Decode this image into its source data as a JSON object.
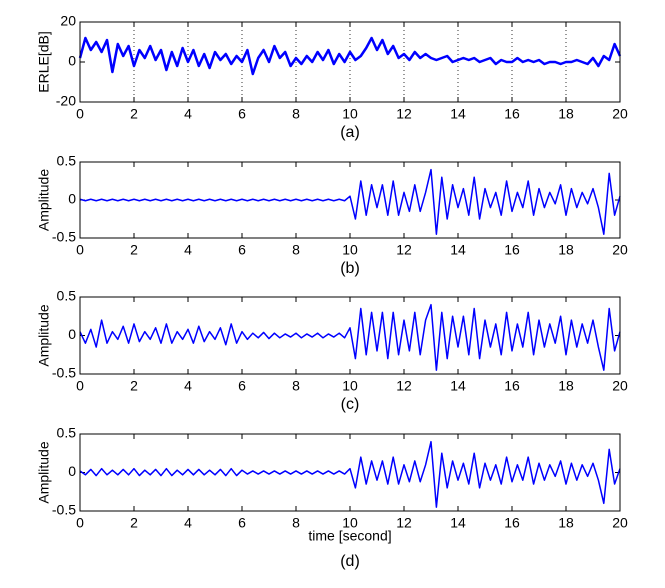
{
  "chart_data": [
    {
      "type": "line",
      "caption": "(a)",
      "ylabel": "ERLE[dB]",
      "color": "#0000ff",
      "grid": true,
      "xlim": [
        0,
        20
      ],
      "xticks": [
        0,
        2,
        4,
        6,
        8,
        10,
        12,
        14,
        16,
        18,
        20
      ],
      "ylim": [
        -20,
        20
      ],
      "yticks": [
        -20,
        0,
        20
      ],
      "x": [
        0,
        0.2,
        0.4,
        0.6,
        0.8,
        1,
        1.2,
        1.4,
        1.6,
        1.8,
        2,
        2.2,
        2.4,
        2.6,
        2.8,
        3,
        3.2,
        3.4,
        3.6,
        3.8,
        4,
        4.2,
        4.4,
        4.6,
        4.8,
        5,
        5.2,
        5.4,
        5.6,
        5.8,
        6,
        6.2,
        6.4,
        6.6,
        6.8,
        7,
        7.2,
        7.4,
        7.6,
        7.8,
        8,
        8.2,
        8.4,
        8.6,
        8.8,
        9,
        9.2,
        9.4,
        9.6,
        9.8,
        10,
        10.2,
        10.4,
        10.6,
        10.8,
        11,
        11.2,
        11.4,
        11.6,
        11.8,
        12,
        12.2,
        12.4,
        12.6,
        12.8,
        13,
        13.2,
        13.4,
        13.6,
        13.8,
        14,
        14.2,
        14.4,
        14.6,
        14.8,
        15,
        15.2,
        15.4,
        15.6,
        15.8,
        16,
        16.2,
        16.4,
        16.6,
        16.8,
        17,
        17.2,
        17.4,
        17.6,
        17.8,
        18,
        18.2,
        18.4,
        18.6,
        18.8,
        19,
        19.2,
        19.4,
        19.6,
        19.8,
        20
      ],
      "values": [
        2,
        12,
        6,
        10,
        5,
        11,
        -5,
        9,
        3,
        8,
        -2,
        6,
        2,
        8,
        1,
        6,
        -4,
        5,
        -2,
        7,
        0,
        6,
        -2,
        4,
        -3,
        5,
        1,
        4,
        -1,
        3,
        0,
        6,
        -6,
        2,
        6,
        0,
        8,
        2,
        5,
        -2,
        2,
        -1,
        3,
        0,
        5,
        1,
        6,
        -1,
        4,
        0,
        5,
        1,
        3,
        7,
        12,
        6,
        11,
        4,
        8,
        2,
        4,
        1,
        5,
        2,
        4,
        2,
        1,
        2,
        3,
        0,
        1,
        2,
        1,
        2,
        0,
        1,
        2,
        -1,
        1,
        0,
        0,
        2,
        0,
        1,
        0,
        1,
        -1,
        0,
        0,
        -1,
        0,
        0,
        1,
        0,
        -1,
        2,
        -2,
        3,
        1,
        9,
        3
      ]
    },
    {
      "type": "line",
      "caption": "(b)",
      "ylabel": "Amplitude",
      "color": "#0000ff",
      "grid": false,
      "xlim": [
        0,
        20
      ],
      "xticks": [
        0,
        2,
        4,
        6,
        8,
        10,
        12,
        14,
        16,
        18,
        20
      ],
      "ylim": [
        -0.5,
        0.5
      ],
      "yticks": [
        -0.5,
        0,
        0.5
      ],
      "x": [
        0,
        0.2,
        0.4,
        0.6,
        0.8,
        1,
        1.2,
        1.4,
        1.6,
        1.8,
        2,
        2.2,
        2.4,
        2.6,
        2.8,
        3,
        3.2,
        3.4,
        3.6,
        3.8,
        4,
        4.2,
        4.4,
        4.6,
        4.8,
        5,
        5.2,
        5.4,
        5.6,
        5.8,
        6,
        6.2,
        6.4,
        6.6,
        6.8,
        7,
        7.2,
        7.4,
        7.6,
        7.8,
        8,
        8.2,
        8.4,
        8.6,
        8.8,
        9,
        9.2,
        9.4,
        9.6,
        9.8,
        10,
        10.2,
        10.4,
        10.6,
        10.8,
        11,
        11.2,
        11.4,
        11.6,
        11.8,
        12,
        12.2,
        12.4,
        12.6,
        12.8,
        13,
        13.2,
        13.4,
        13.6,
        13.8,
        14,
        14.2,
        14.4,
        14.6,
        14.8,
        15,
        15.2,
        15.4,
        15.6,
        15.8,
        16,
        16.2,
        16.4,
        16.6,
        16.8,
        17,
        17.2,
        17.4,
        17.6,
        17.8,
        18,
        18.2,
        18.4,
        18.6,
        18.8,
        19,
        19.2,
        19.4,
        19.6,
        19.8,
        20
      ],
      "values": [
        0.01,
        -0.01,
        0.01,
        -0.01,
        0.01,
        -0.01,
        0.01,
        -0.01,
        0.01,
        -0.01,
        0.01,
        -0.01,
        0.01,
        -0.01,
        0.01,
        -0.01,
        0.01,
        -0.01,
        0.01,
        -0.01,
        0.01,
        -0.01,
        0.01,
        -0.01,
        0.01,
        -0.01,
        0.01,
        -0.01,
        0.01,
        -0.01,
        0.01,
        -0.01,
        0.01,
        -0.01,
        0.01,
        -0.01,
        0.01,
        -0.01,
        0.01,
        -0.01,
        0.01,
        -0.01,
        0.01,
        -0.01,
        0.01,
        -0.01,
        0.01,
        -0.01,
        0.01,
        -0.01,
        0.05,
        -0.25,
        0.25,
        -0.2,
        0.2,
        -0.1,
        0.2,
        -0.2,
        0.25,
        -0.2,
        0.1,
        -0.15,
        0.2,
        -0.15,
        0.1,
        0.4,
        -0.45,
        0.3,
        -0.25,
        0.2,
        -0.1,
        0.15,
        -0.2,
        0.3,
        -0.25,
        0.15,
        -0.1,
        0.1,
        -0.2,
        0.25,
        -0.15,
        0.1,
        -0.1,
        0.25,
        -0.2,
        0.15,
        -0.1,
        0.1,
        -0.05,
        0.2,
        -0.2,
        0.15,
        -0.1,
        0.1,
        -0.05,
        0.15,
        -0.1,
        -0.45,
        0.35,
        -0.2,
        0.05
      ]
    },
    {
      "type": "line",
      "caption": "(c)",
      "ylabel": "Amplitude",
      "color": "#0000ff",
      "grid": false,
      "xlim": [
        0,
        20
      ],
      "xticks": [
        0,
        2,
        4,
        6,
        8,
        10,
        12,
        14,
        16,
        18,
        20
      ],
      "ylim": [
        -0.5,
        0.5
      ],
      "yticks": [
        -0.5,
        0,
        0.5
      ],
      "x": [
        0,
        0.2,
        0.4,
        0.6,
        0.8,
        1,
        1.2,
        1.4,
        1.6,
        1.8,
        2,
        2.2,
        2.4,
        2.6,
        2.8,
        3,
        3.2,
        3.4,
        3.6,
        3.8,
        4,
        4.2,
        4.4,
        4.6,
        4.8,
        5,
        5.2,
        5.4,
        5.6,
        5.8,
        6,
        6.2,
        6.4,
        6.6,
        6.8,
        7,
        7.2,
        7.4,
        7.6,
        7.8,
        8,
        8.2,
        8.4,
        8.6,
        8.8,
        9,
        9.2,
        9.4,
        9.6,
        9.8,
        10,
        10.2,
        10.4,
        10.6,
        10.8,
        11,
        11.2,
        11.4,
        11.6,
        11.8,
        12,
        12.2,
        12.4,
        12.6,
        12.8,
        13,
        13.2,
        13.4,
        13.6,
        13.8,
        14,
        14.2,
        14.4,
        14.6,
        14.8,
        15,
        15.2,
        15.4,
        15.6,
        15.8,
        16,
        16.2,
        16.4,
        16.6,
        16.8,
        17,
        17.2,
        17.4,
        17.6,
        17.8,
        18,
        18.2,
        18.4,
        18.6,
        18.8,
        19,
        19.2,
        19.4,
        19.6,
        19.8,
        20
      ],
      "values": [
        0.05,
        -0.1,
        0.08,
        -0.15,
        0.2,
        -0.1,
        0.05,
        -0.05,
        0.12,
        -0.1,
        0.15,
        -0.08,
        0.05,
        -0.05,
        0.1,
        -0.1,
        0.15,
        -0.1,
        0.05,
        -0.05,
        0.08,
        -0.1,
        0.12,
        -0.08,
        0.05,
        -0.05,
        0.1,
        -0.12,
        0.15,
        -0.1,
        0.05,
        -0.05,
        0.03,
        -0.03,
        0.04,
        -0.04,
        0.03,
        -0.03,
        0.02,
        -0.02,
        0.03,
        -0.03,
        0.02,
        -0.02,
        0.03,
        -0.03,
        0.02,
        -0.02,
        0.03,
        -0.03,
        0.1,
        -0.3,
        0.35,
        -0.25,
        0.3,
        -0.2,
        0.3,
        -0.3,
        0.3,
        -0.25,
        0.2,
        -0.2,
        0.3,
        -0.25,
        0.2,
        0.4,
        -0.45,
        0.3,
        -0.3,
        0.25,
        -0.15,
        0.25,
        -0.25,
        0.35,
        -0.3,
        0.2,
        -0.15,
        0.15,
        -0.25,
        0.3,
        -0.2,
        0.15,
        -0.15,
        0.3,
        -0.25,
        0.2,
        -0.15,
        0.15,
        -0.1,
        0.25,
        -0.25,
        0.2,
        -0.15,
        0.15,
        -0.1,
        0.2,
        -0.15,
        -0.45,
        0.35,
        -0.2,
        0.05
      ]
    },
    {
      "type": "line",
      "caption": "(d)",
      "ylabel": "Amplitude",
      "xlabel": "time [second]",
      "color": "#0000ff",
      "grid": false,
      "xlim": [
        0,
        20
      ],
      "xticks": [
        0,
        2,
        4,
        6,
        8,
        10,
        12,
        14,
        16,
        18,
        20
      ],
      "ylim": [
        -0.5,
        0.5
      ],
      "yticks": [
        -0.5,
        0,
        0.5
      ],
      "x": [
        0,
        0.2,
        0.4,
        0.6,
        0.8,
        1,
        1.2,
        1.4,
        1.6,
        1.8,
        2,
        2.2,
        2.4,
        2.6,
        2.8,
        3,
        3.2,
        3.4,
        3.6,
        3.8,
        4,
        4.2,
        4.4,
        4.6,
        4.8,
        5,
        5.2,
        5.4,
        5.6,
        5.8,
        6,
        6.2,
        6.4,
        6.6,
        6.8,
        7,
        7.2,
        7.4,
        7.6,
        7.8,
        8,
        8.2,
        8.4,
        8.6,
        8.8,
        9,
        9.2,
        9.4,
        9.6,
        9.8,
        10,
        10.2,
        10.4,
        10.6,
        10.8,
        11,
        11.2,
        11.4,
        11.6,
        11.8,
        12,
        12.2,
        12.4,
        12.6,
        12.8,
        13,
        13.2,
        13.4,
        13.6,
        13.8,
        14,
        14.2,
        14.4,
        14.6,
        14.8,
        15,
        15.2,
        15.4,
        15.6,
        15.8,
        16,
        16.2,
        16.4,
        16.6,
        16.8,
        17,
        17.2,
        17.4,
        17.6,
        17.8,
        18,
        18.2,
        18.4,
        18.6,
        18.8,
        19,
        19.2,
        19.4,
        19.6,
        19.8,
        20
      ],
      "values": [
        0.02,
        -0.03,
        0.04,
        -0.04,
        0.05,
        -0.03,
        0.03,
        -0.03,
        0.04,
        -0.03,
        0.05,
        -0.04,
        0.03,
        -0.03,
        0.04,
        -0.04,
        0.05,
        -0.04,
        0.03,
        -0.03,
        0.04,
        -0.03,
        0.04,
        -0.03,
        0.03,
        -0.03,
        0.04,
        -0.04,
        0.05,
        -0.04,
        0.03,
        -0.02,
        0.02,
        -0.02,
        0.02,
        -0.02,
        0.02,
        -0.02,
        0.02,
        -0.02,
        0.02,
        -0.02,
        0.02,
        -0.02,
        0.02,
        -0.02,
        0.02,
        -0.02,
        0.02,
        -0.02,
        0.05,
        -0.2,
        0.2,
        -0.15,
        0.15,
        -0.1,
        0.15,
        -0.15,
        0.2,
        -0.15,
        0.1,
        -0.12,
        0.15,
        -0.12,
        0.1,
        0.4,
        -0.45,
        0.25,
        -0.2,
        0.15,
        -0.1,
        0.12,
        -0.15,
        0.25,
        -0.2,
        0.12,
        -0.1,
        0.1,
        -0.15,
        0.2,
        -0.12,
        0.1,
        -0.1,
        0.2,
        -0.15,
        0.12,
        -0.1,
        0.1,
        -0.05,
        0.15,
        -0.15,
        0.12,
        -0.1,
        0.1,
        -0.05,
        0.12,
        -0.1,
        -0.4,
        0.3,
        -0.15,
        0.05
      ]
    }
  ]
}
